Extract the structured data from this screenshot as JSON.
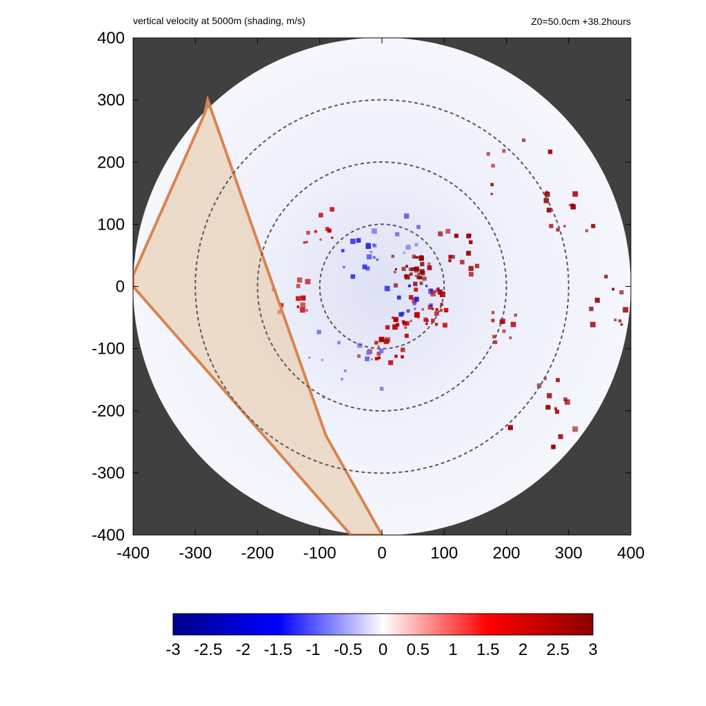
{
  "chart_data": {
    "type": "heatmap",
    "title_left": "vertical velocity at 5000m (shading, m/s)",
    "title_right": "Z0=50.0cm  +38.2hours",
    "xlabel": "",
    "ylabel": "",
    "xlim": [
      -400,
      400
    ],
    "ylim": [
      -400,
      400
    ],
    "x_ticks": [
      "-400",
      "-300",
      "-200",
      "-100",
      "0",
      "100",
      "200",
      "300",
      "400"
    ],
    "y_ticks": [
      "400",
      "300",
      "200",
      "100",
      "0",
      "-100",
      "-200",
      "-300",
      "-400"
    ],
    "domain_radius": 400,
    "range_rings": [
      100,
      200,
      300
    ],
    "colorbar": {
      "min": -3,
      "max": 3,
      "ticks": [
        "-3",
        "-2.5",
        "-2",
        "-1.5",
        "-1",
        "-0.5",
        "0",
        "0.5",
        "1",
        "1.5",
        "2",
        "2.5",
        "3"
      ],
      "colors": [
        "#00008b",
        "#0000ff",
        "#ffffff",
        "#ff0000",
        "#8b0000"
      ]
    },
    "band_polygon": [
      [
        -285,
        278
      ],
      [
        -400,
        18
      ],
      [
        -400,
        0
      ],
      [
        -50,
        -400
      ],
      [
        0,
        -400
      ],
      [
        -90,
        -240
      ],
      [
        -280,
        300
      ]
    ],
    "colors": {
      "outside_domain": "#404040",
      "band_fill": "#e8c9a8",
      "band_edge": "#d9844e",
      "ring": "#555555"
    }
  }
}
